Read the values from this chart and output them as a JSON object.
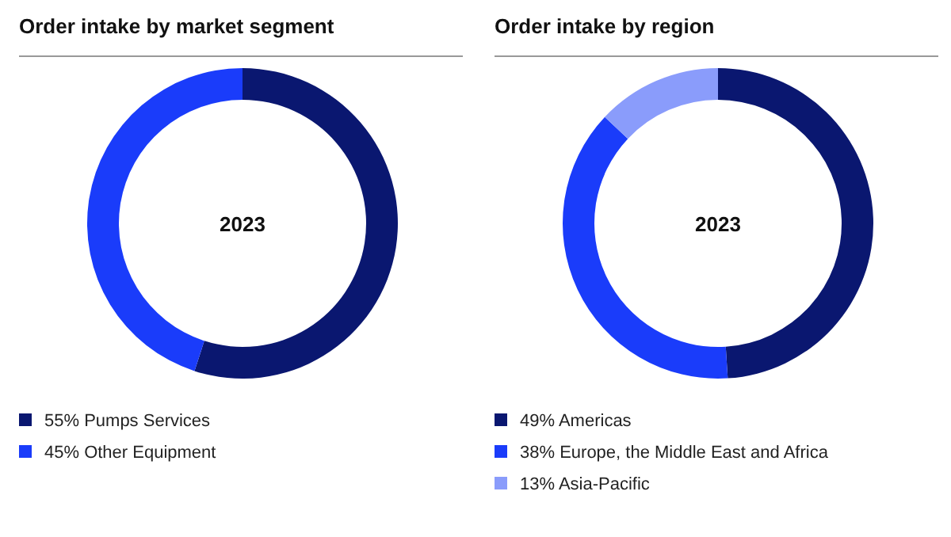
{
  "chart_data": [
    {
      "type": "donut",
      "title": "Order intake by market segment",
      "categories": [
        "Pumps Services",
        "Other Equipment"
      ],
      "values": [
        55,
        45
      ],
      "value_labels": [
        "55%",
        "45%"
      ],
      "colors": [
        "#0a1770",
        "#1a3cfa"
      ],
      "annotations": [
        "2023"
      ],
      "legend": "bottom left"
    },
    {
      "type": "donut",
      "title": "Order intake by region",
      "categories": [
        "Americas",
        "Europe, the Middle East and Africa",
        "Asia-Pacific"
      ],
      "values": [
        49,
        38,
        13
      ],
      "value_labels": [
        "49%",
        "38%",
        "13%"
      ],
      "colors": [
        "#0a1770",
        "#1a3cfa",
        "#8a9cfb"
      ],
      "annotations": [
        "2023"
      ],
      "legend": "bottom left"
    }
  ]
}
